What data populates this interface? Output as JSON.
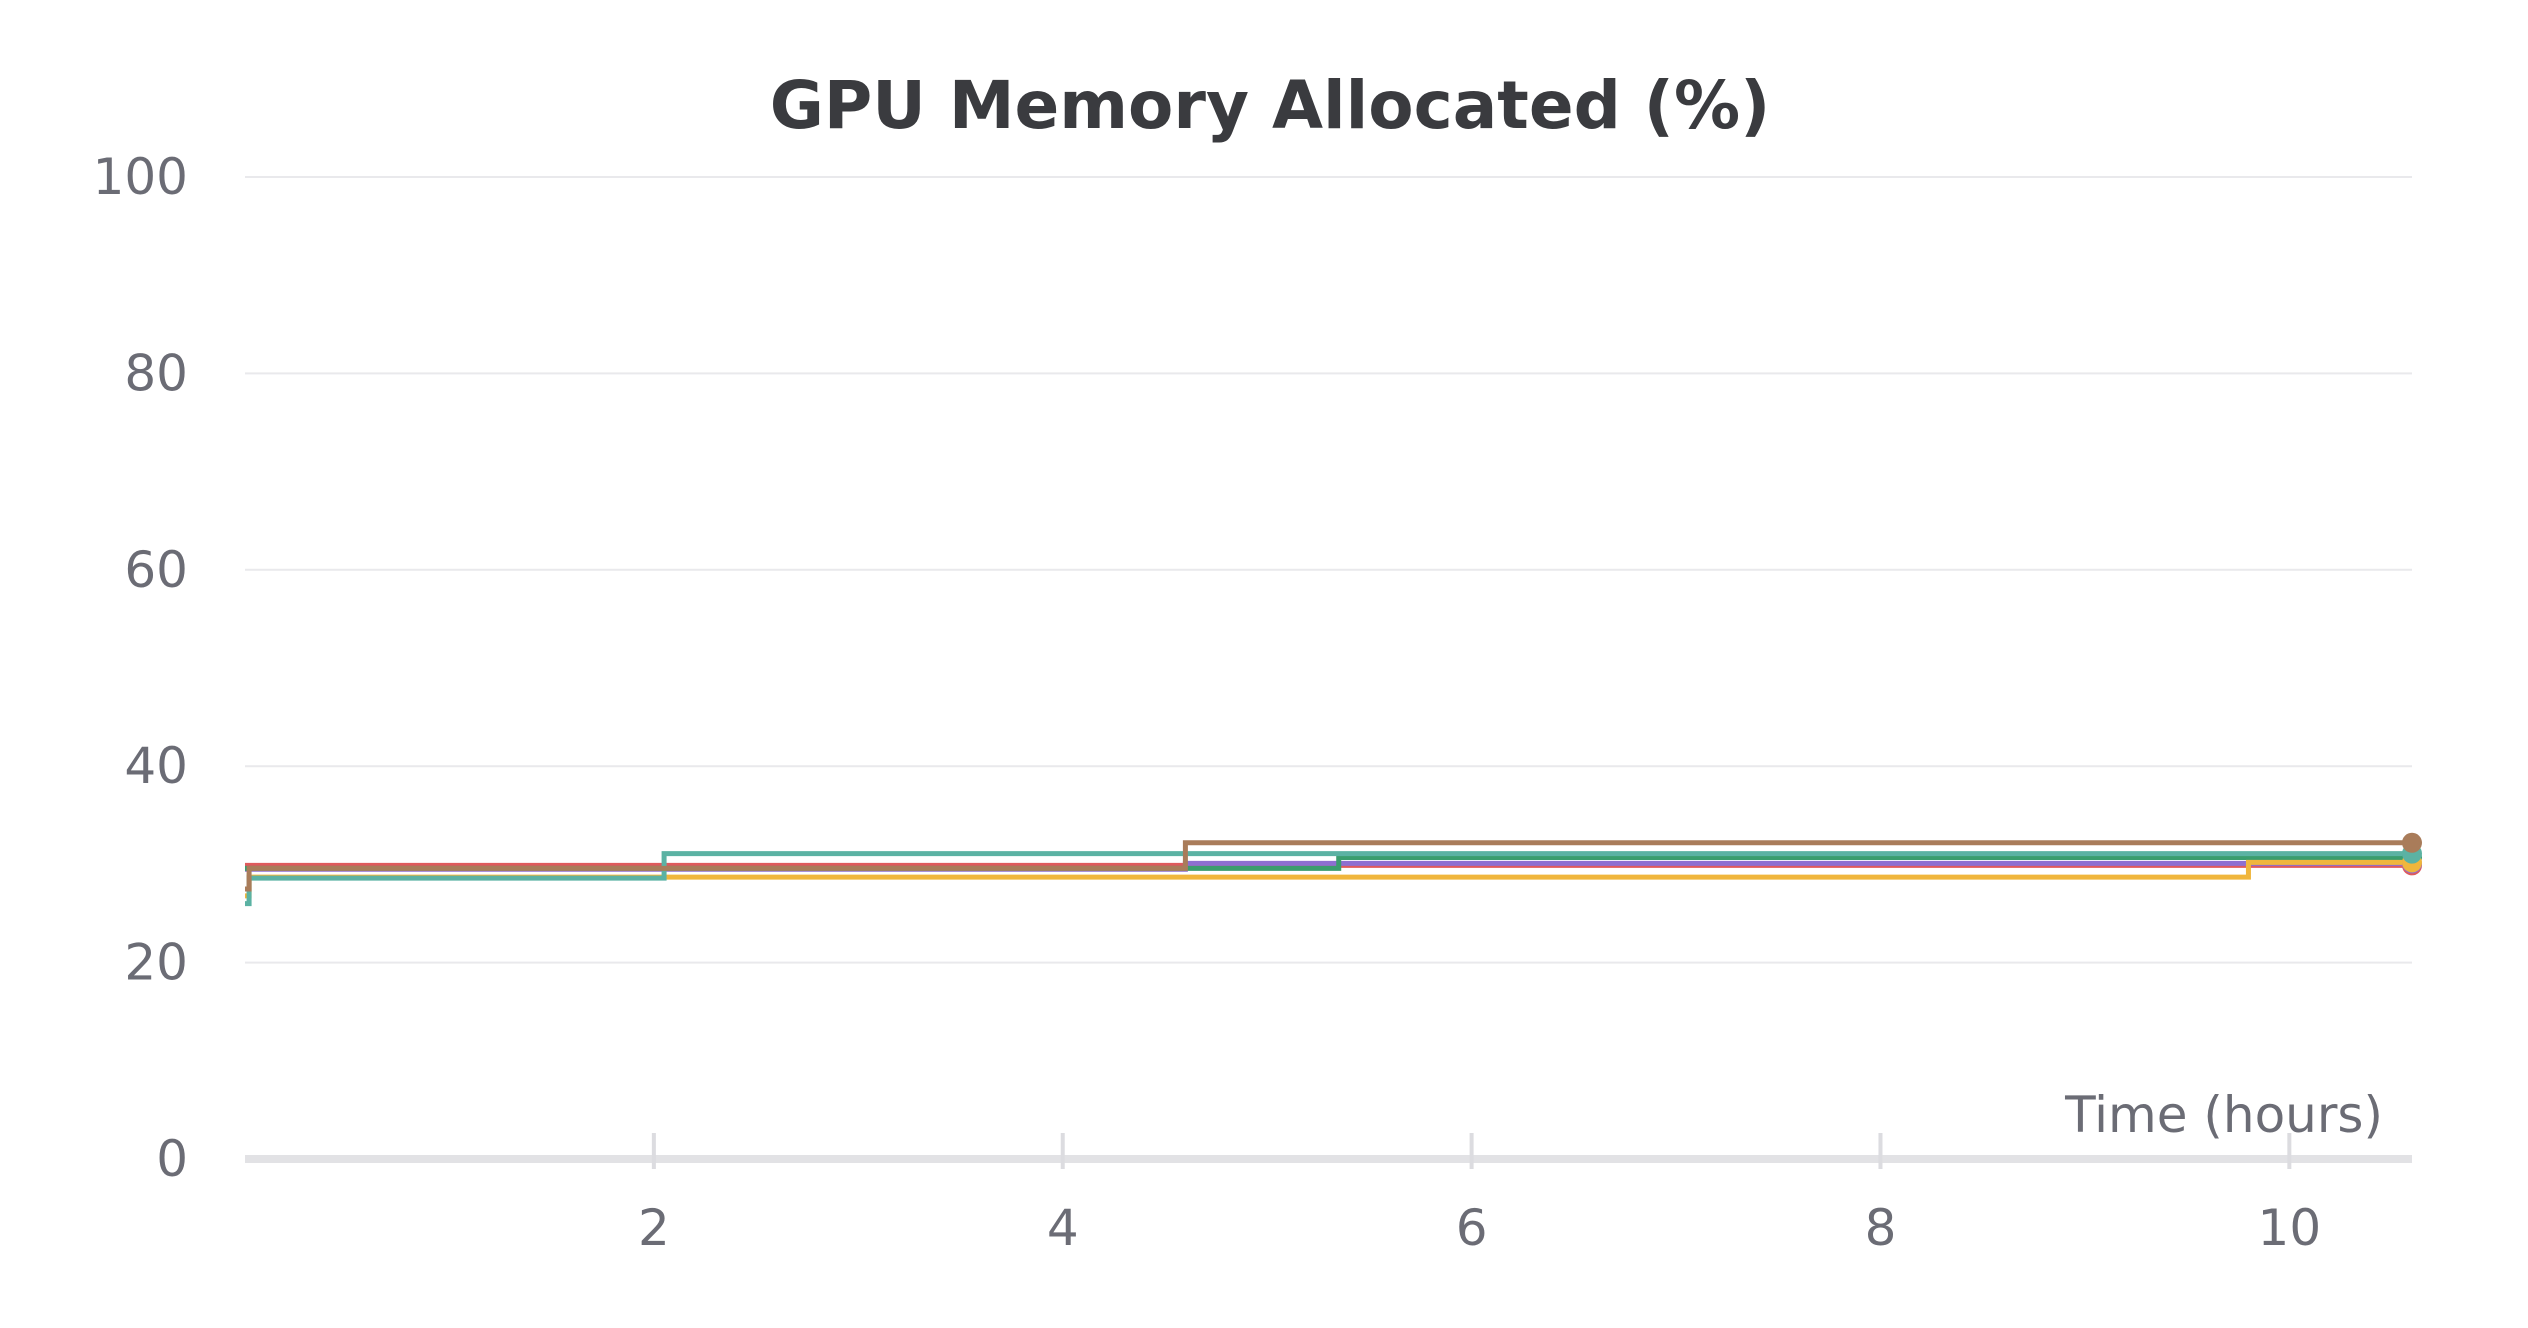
{
  "chart_data": {
    "type": "line",
    "title": "GPU Memory Allocated (%)",
    "xlabel": "Time (hours)",
    "ylabel": "",
    "xlim": [
      0,
      10.6
    ],
    "ylim": [
      0,
      100
    ],
    "x_ticks": [
      2,
      4,
      6,
      8,
      10
    ],
    "y_ticks": [
      0,
      20,
      40,
      60,
      80,
      100
    ],
    "grid": true,
    "legend": "none",
    "interpolation": "step",
    "series": [
      {
        "color": "#df5a5c",
        "x": [
          0,
          10.6
        ],
        "y": [
          29.9,
          29.9
        ]
      },
      {
        "color": "#8d6fd1",
        "x": [
          0,
          4.6,
          10.6
        ],
        "y": [
          29.5,
          30.1,
          30.1
        ]
      },
      {
        "color": "#3a9d6e",
        "x": [
          0,
          5.35,
          10.6
        ],
        "y": [
          29.6,
          30.7,
          30.7
        ]
      },
      {
        "color": "#f0b63c",
        "x": [
          0,
          0.02,
          9.8,
          10.6
        ],
        "y": [
          26.8,
          28.7,
          30.2,
          30.2
        ]
      },
      {
        "color": "#5bb2a3",
        "x": [
          0,
          0.02,
          2.05,
          10.6
        ],
        "y": [
          26.0,
          28.6,
          31.1,
          31.1
        ]
      },
      {
        "color": "#a97c5a",
        "x": [
          0,
          0.02,
          4.6,
          10.6
        ],
        "y": [
          27.5,
          29.6,
          32.2,
          32.2
        ]
      }
    ]
  }
}
